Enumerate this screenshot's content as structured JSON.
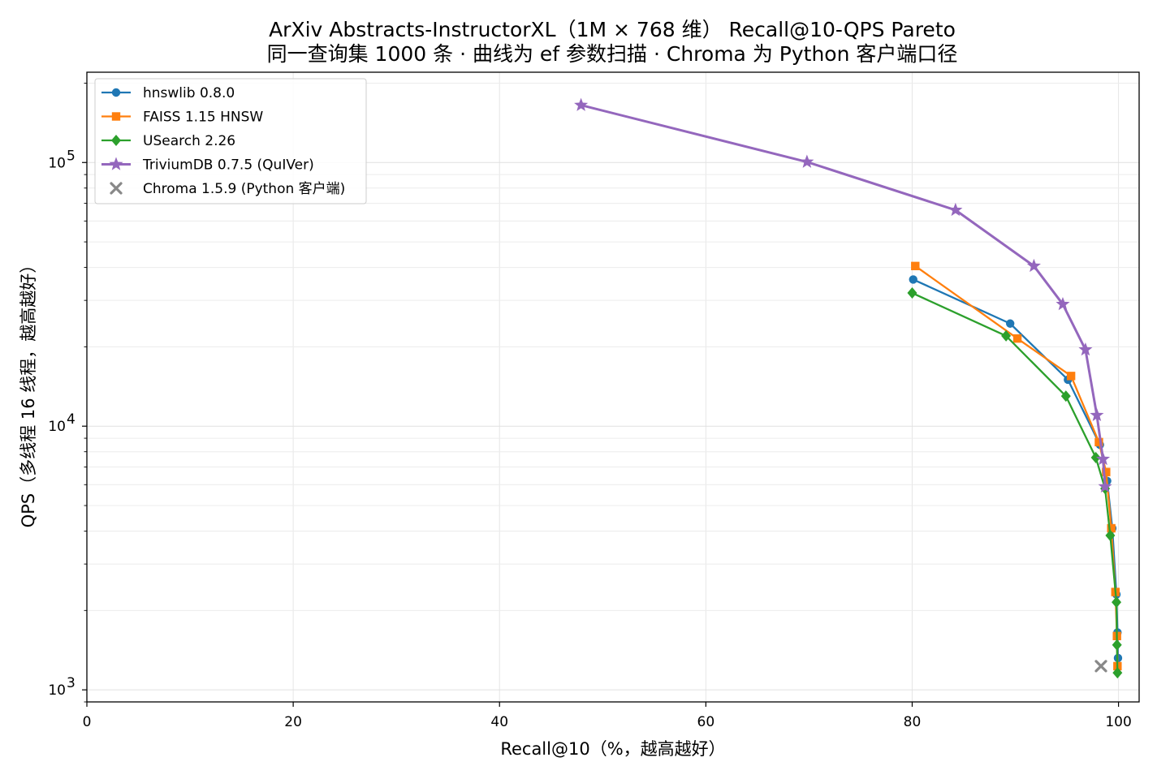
{
  "chart_data": {
    "type": "line",
    "title": "ArXiv Abstracts-InstructorXL（1M × 768 维） Recall@10-QPS Pareto",
    "subtitle": "同一查询集 1000 条 · 曲线为 ef 参数扫描 · Chroma 为 Python 客户端口径",
    "xlabel": "Recall@10（%，越高越好）",
    "ylabel": "QPS（多线程 16 线程，越高越好）",
    "xlim": [
      0,
      102
    ],
    "ylim": [
      900,
      220000
    ],
    "yscale": "log",
    "grid": true,
    "legend_position": "top-left",
    "x_ticks": [
      "0",
      "20",
      "40",
      "60",
      "80",
      "100"
    ],
    "y_ticks": [
      {
        "base": "10",
        "exp": "3"
      },
      {
        "base": "10",
        "exp": "4"
      },
      {
        "base": "10",
        "exp": "5"
      }
    ],
    "series": [
      {
        "name": "hnswlib 0.8.0",
        "color": "#1f77b4",
        "marker": "circle",
        "line": true,
        "x": [
          80.1,
          89.5,
          95.1,
          98.2,
          98.9,
          99.4,
          99.8,
          99.9,
          99.95
        ],
        "y": [
          36000,
          24500,
          15000,
          8500,
          6200,
          4100,
          2300,
          1650,
          1320
        ]
      },
      {
        "name": "FAISS 1.15 HNSW",
        "color": "#ff7f0e",
        "marker": "square",
        "line": true,
        "x": [
          80.3,
          90.2,
          95.4,
          98.1,
          98.8,
          99.3,
          99.7,
          99.85,
          99.9
        ],
        "y": [
          40500,
          21500,
          15500,
          8700,
          6700,
          4100,
          2350,
          1600,
          1230
        ]
      },
      {
        "name": "USearch 2.26",
        "color": "#2ca02c",
        "marker": "diamond",
        "line": true,
        "x": [
          80.0,
          89.1,
          94.9,
          97.8,
          98.7,
          99.2,
          99.8,
          99.85,
          99.9
        ],
        "y": [
          32000,
          22000,
          13000,
          7600,
          5800,
          3850,
          2150,
          1480,
          1160
        ]
      },
      {
        "name": "TriviumDB 0.7.5 (QuIVer)",
        "color": "#9467bd",
        "marker": "star",
        "line": true,
        "x": [
          47.9,
          69.8,
          84.2,
          91.8,
          94.6,
          96.8,
          97.9,
          98.5,
          98.7
        ],
        "y": [
          165000,
          100500,
          66000,
          40500,
          29000,
          19500,
          11000,
          7500,
          5900
        ]
      },
      {
        "name": "Chroma 1.5.9 (Python 客户端)",
        "color": "#888888",
        "marker": "x",
        "line": false,
        "x": [
          98.3
        ],
        "y": [
          1230
        ]
      }
    ]
  }
}
